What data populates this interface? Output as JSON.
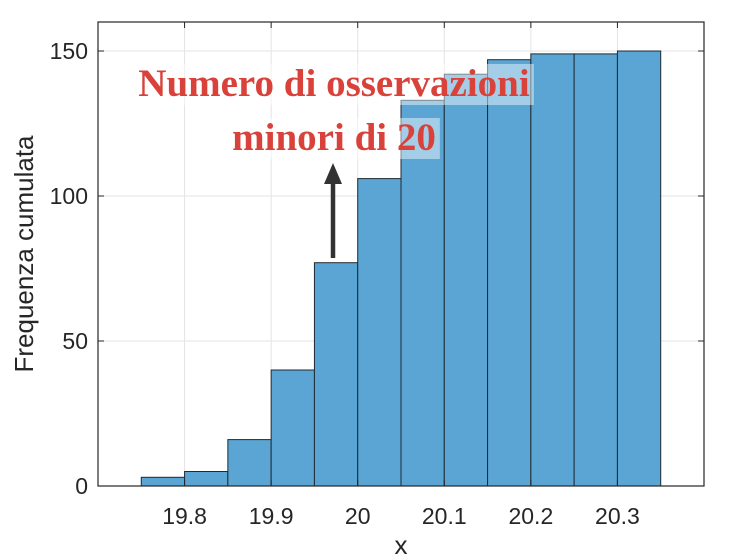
{
  "chart_data": {
    "type": "bar",
    "title": "",
    "xlabel": "x",
    "ylabel": "Frequenza cumulata",
    "bin_edges": [
      19.75,
      19.8,
      19.85,
      19.9,
      19.95,
      20.0,
      20.05,
      20.1,
      20.15,
      20.2,
      20.25,
      20.3,
      20.35
    ],
    "values": [
      3,
      5,
      16,
      40,
      77,
      106,
      133,
      142,
      147,
      149,
      149,
      150
    ],
    "xlim": [
      19.7,
      20.4
    ],
    "ylim": [
      0,
      160
    ],
    "xticks": [
      19.8,
      19.9,
      20,
      20.1,
      20.2,
      20.3
    ],
    "xtick_labels": [
      "19.8",
      "19.9",
      "20",
      "20.1",
      "20.2",
      "20.3"
    ],
    "yticks": [
      0,
      50,
      100,
      150
    ],
    "ytick_labels": [
      "0",
      "50",
      "100",
      "150"
    ],
    "grid": true,
    "bar_color": "#5aa5d3",
    "bar_edge_color": "#1f2a33",
    "annotation": {
      "lines": [
        "Numero di osservazioni",
        "minori di 20"
      ],
      "color": "#d8423a",
      "arrow_color": "#333333"
    }
  }
}
